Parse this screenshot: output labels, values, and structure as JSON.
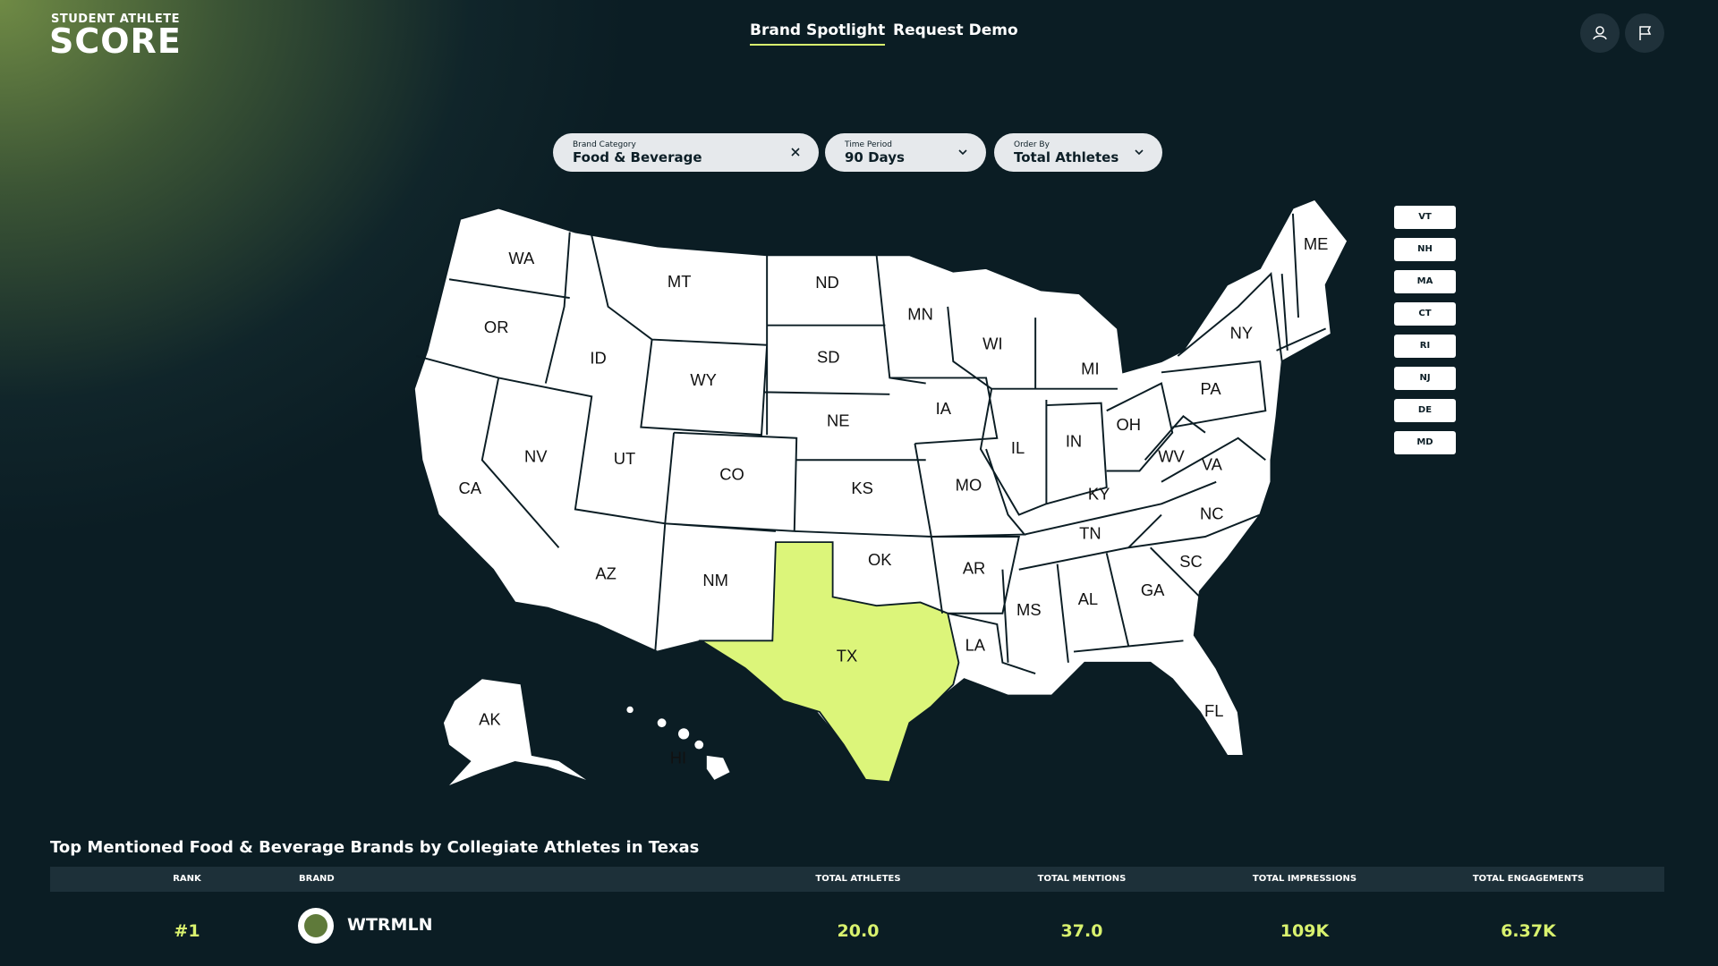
{
  "header": {
    "logo_top": "STUDENT ATHLETE",
    "logo_main": "SCORE",
    "nav": [
      "Brand Spotlight",
      "Request Demo"
    ]
  },
  "filters": [
    {
      "label": "Brand Category",
      "value": "Food & Beverage"
    },
    {
      "label": "Time Period",
      "value": "90 Days"
    },
    {
      "label": "Order By",
      "value": "Total Athletes"
    }
  ],
  "map": {
    "states": [
      "WA",
      "MT",
      "ND",
      "MN",
      "OR",
      "ID",
      "WY",
      "SD",
      "WI",
      "MI",
      "NY",
      "ME",
      "PA",
      "IA",
      "NE",
      "NV",
      "UT",
      "CO",
      "IL",
      "IN",
      "OH",
      "CA",
      "KS",
      "MO",
      "KY",
      "WV",
      "VA",
      "NC",
      "TN",
      "OK",
      "AR",
      "SC",
      "AZ",
      "NM",
      "MS",
      "AL",
      "GA",
      "TX",
      "LA",
      "FL",
      "AK",
      "HI"
    ],
    "small_states": [
      "VT",
      "NH",
      "MA",
      "CT",
      "RI",
      "NJ",
      "DE",
      "MD"
    ]
  },
  "table": {
    "title": "Top Mentioned Food & Beverage Brands by Collegiate Athletes in Texas",
    "columns": [
      "RANK",
      "BRAND",
      "TOTAL ATHLETES",
      "TOTAL MENTIONS",
      "TOTAL IMPRESSIONS",
      "TOTAL ENGAGEMENTS"
    ],
    "rows": [
      [
        "#1",
        "WTRMLN",
        "20.0",
        "37.0",
        "109K",
        "6.37K"
      ]
    ]
  }
}
